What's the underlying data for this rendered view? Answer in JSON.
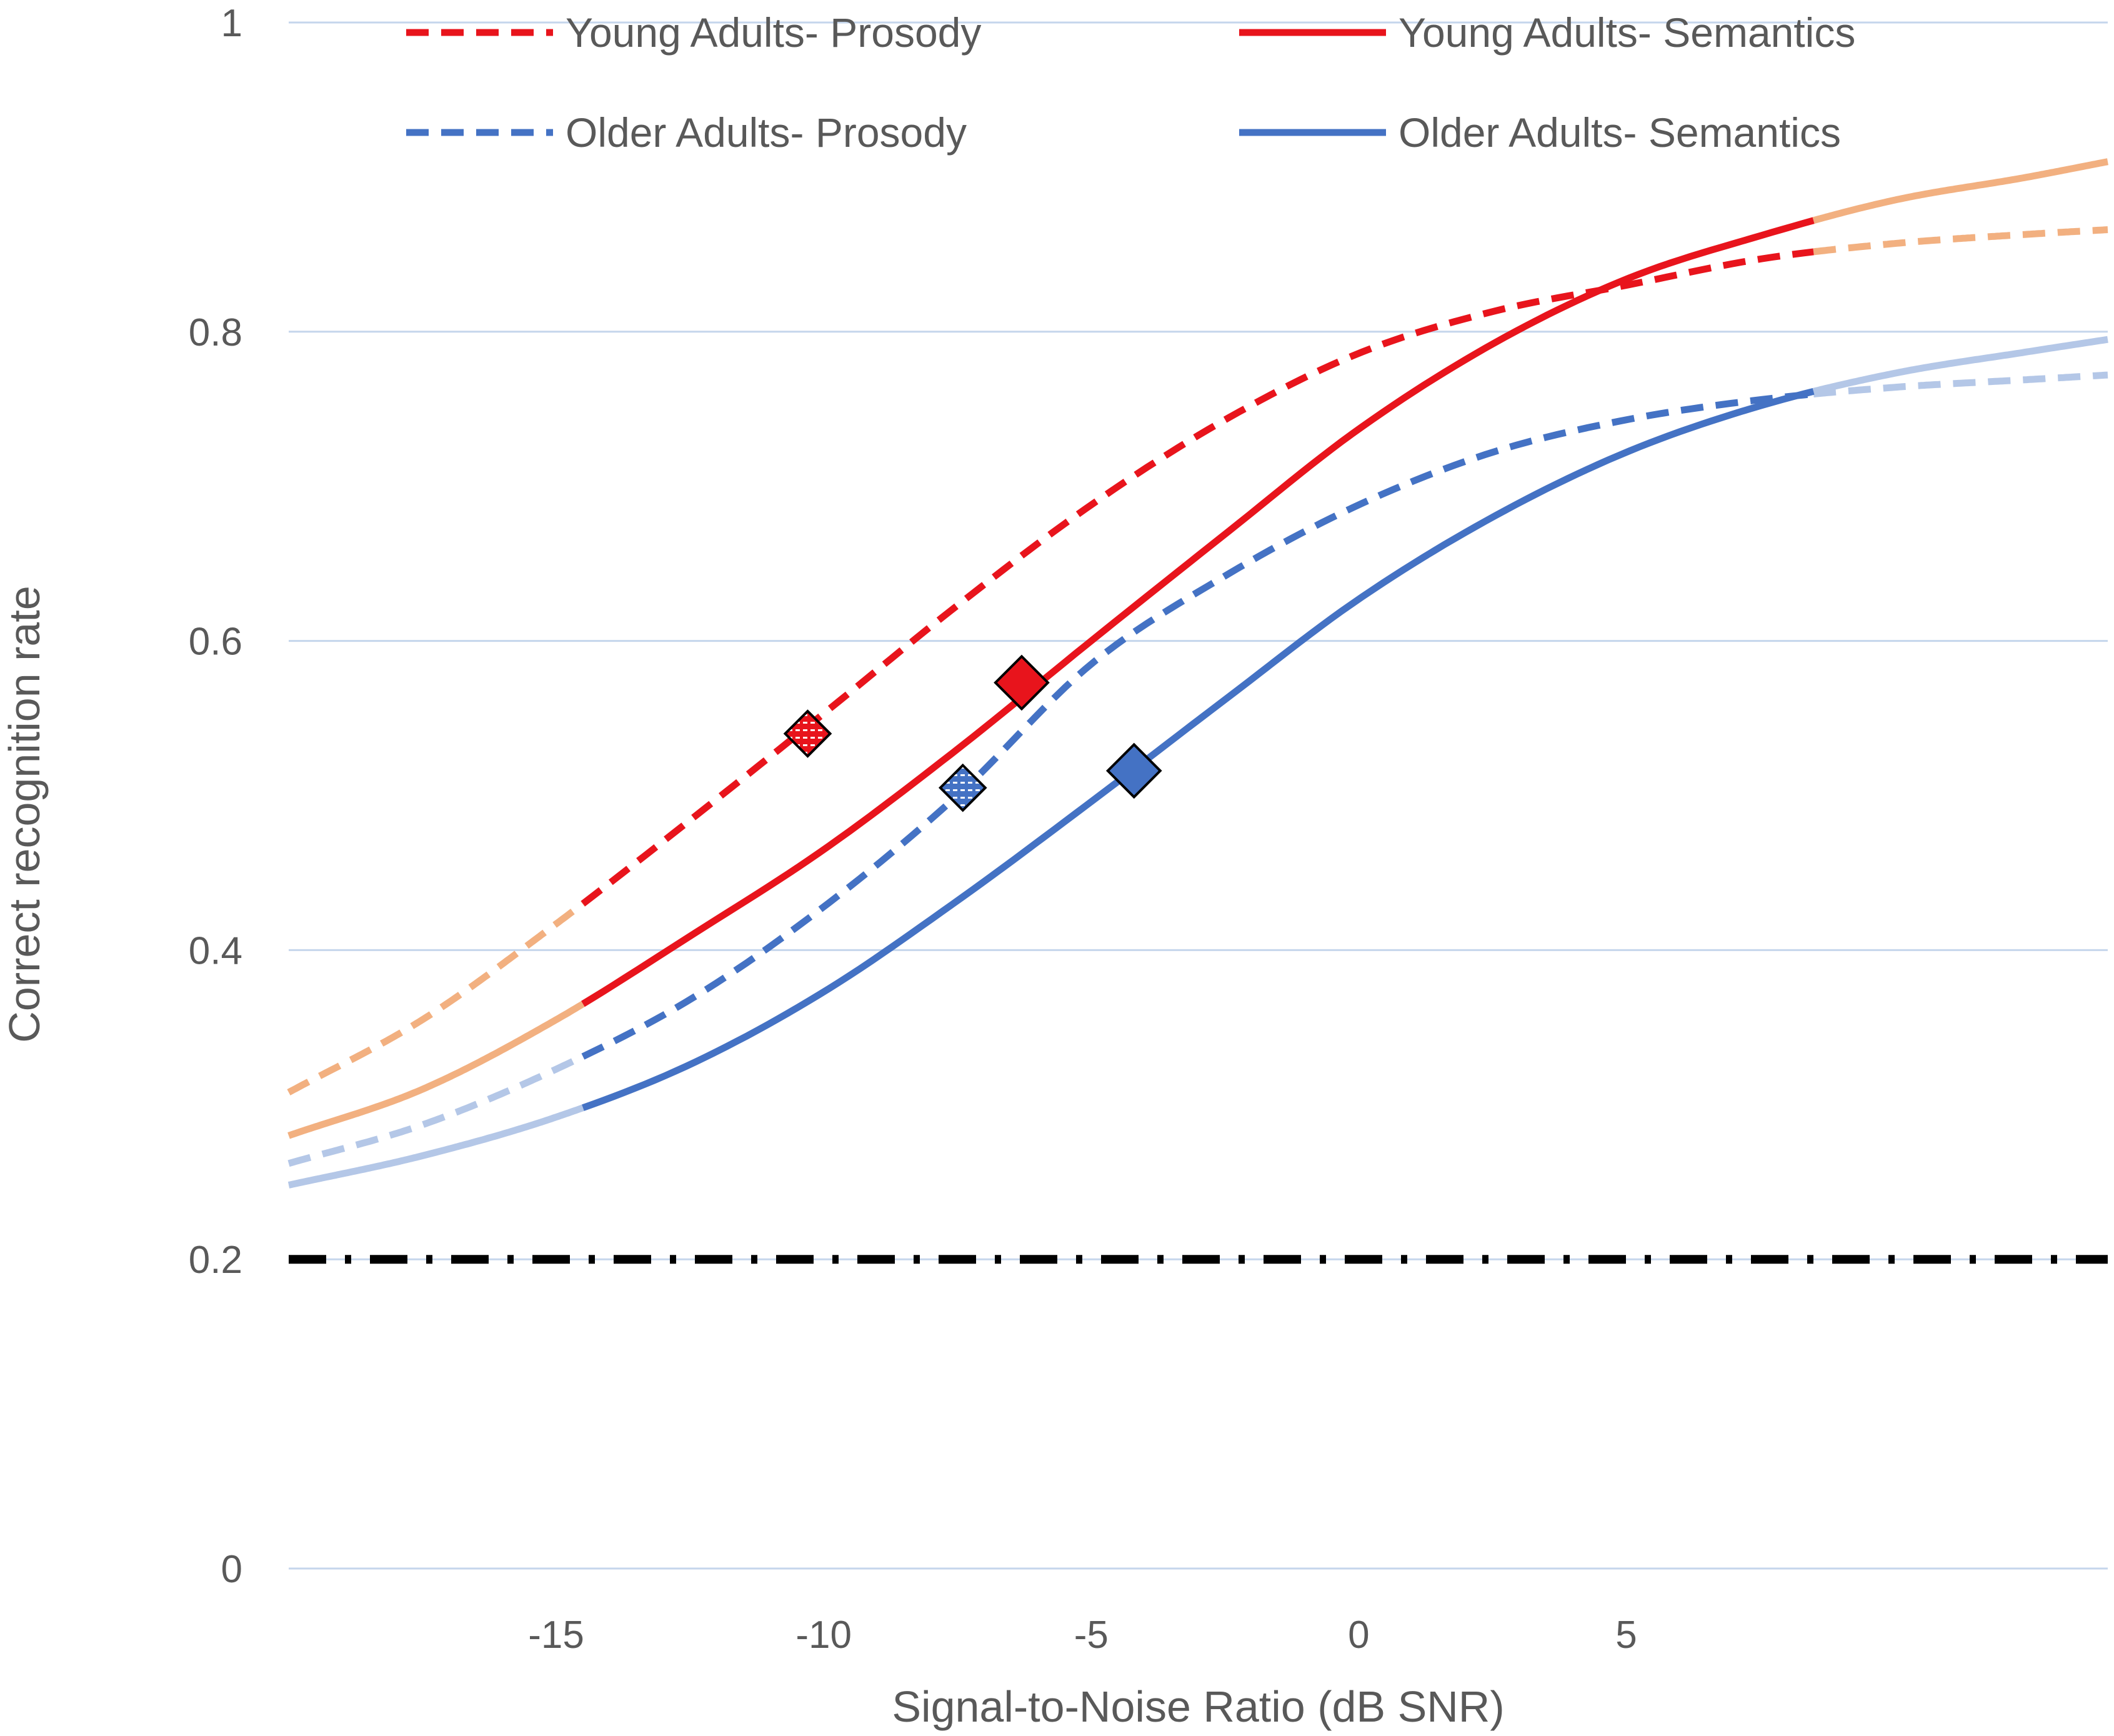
{
  "chart_data": {
    "type": "line",
    "title": "",
    "xlabel": "Signal-to-Noise Ratio (dB SNR)",
    "ylabel": "Correct recognition rate",
    "xlim": [
      -20,
      14
    ],
    "ylim": [
      0,
      1
    ],
    "xticks": [
      -15,
      -10,
      -5,
      0,
      5
    ],
    "xtick_labels": [
      "-15",
      "-10",
      "-5",
      "0",
      "5"
    ],
    "yticks": [
      0,
      0.2,
      0.4,
      0.6,
      0.8,
      1
    ],
    "ytick_labels": [
      "0",
      "0.2",
      "0.4",
      "0.6",
      "0.8",
      "1"
    ],
    "grid": "horizontal",
    "legend_position": "top",
    "fitted_range": [
      -14.5,
      8.5
    ],
    "chance_level": 0.2,
    "series": [
      {
        "name": "Young Adults- Prosody",
        "style": "dashed",
        "color": "#e8141c",
        "extrapolated_color": "#f2b080",
        "x": [
          -20,
          -17.5,
          -15,
          -12.5,
          -10,
          -7.5,
          -5,
          -2.5,
          0,
          2.5,
          5,
          7.5,
          10,
          12.5,
          14
        ],
        "values": [
          0.308,
          0.355,
          0.417,
          0.484,
          0.553,
          0.623,
          0.688,
          0.743,
          0.786,
          0.813,
          0.83,
          0.847,
          0.857,
          0.863,
          0.866
        ],
        "marker": {
          "x": -10.3,
          "y": 0.54,
          "style": "hatched-diamond"
        }
      },
      {
        "name": "Young Adults- Semantics",
        "style": "solid",
        "color": "#e8141c",
        "extrapolated_color": "#f2b080",
        "x": [
          -20,
          -17.5,
          -15,
          -12.5,
          -10,
          -7.5,
          -5,
          -2.5,
          0,
          2.5,
          5,
          7.5,
          10,
          12.5,
          14
        ],
        "values": [
          0.28,
          0.31,
          0.355,
          0.409,
          0.465,
          0.53,
          0.6,
          0.669,
          0.737,
          0.792,
          0.834,
          0.862,
          0.885,
          0.9,
          0.91
        ],
        "marker": {
          "x": -6.3,
          "y": 0.573,
          "style": "solid-diamond"
        }
      },
      {
        "name": "Older Adults- Prosody",
        "style": "dashed",
        "color": "#4472c4",
        "extrapolated_color": "#b4c7e7",
        "x": [
          -20,
          -17.5,
          -15,
          -12.5,
          -10,
          -7.5,
          -5,
          -2.5,
          0,
          2.5,
          5,
          7.5,
          10,
          12.5,
          14
        ],
        "values": [
          0.262,
          0.287,
          0.323,
          0.368,
          0.428,
          0.5,
          0.585,
          0.642,
          0.688,
          0.722,
          0.743,
          0.756,
          0.764,
          0.769,
          0.772
        ],
        "marker": {
          "x": -7.4,
          "y": 0.505,
          "style": "hatched-diamond"
        }
      },
      {
        "name": "Older Adults- Semantics",
        "style": "solid",
        "color": "#4472c4",
        "extrapolated_color": "#b4c7e7",
        "x": [
          -20,
          -17.5,
          -15,
          -12.5,
          -10,
          -7.5,
          -5,
          -2.5,
          0,
          2.5,
          5,
          7.5,
          10,
          12.5,
          14
        ],
        "values": [
          0.248,
          0.267,
          0.292,
          0.326,
          0.373,
          0.432,
          0.496,
          0.562,
          0.627,
          0.68,
          0.722,
          0.752,
          0.773,
          0.787,
          0.795
        ],
        "marker": {
          "x": -4.2,
          "y": 0.516,
          "style": "solid-diamond"
        }
      }
    ]
  }
}
